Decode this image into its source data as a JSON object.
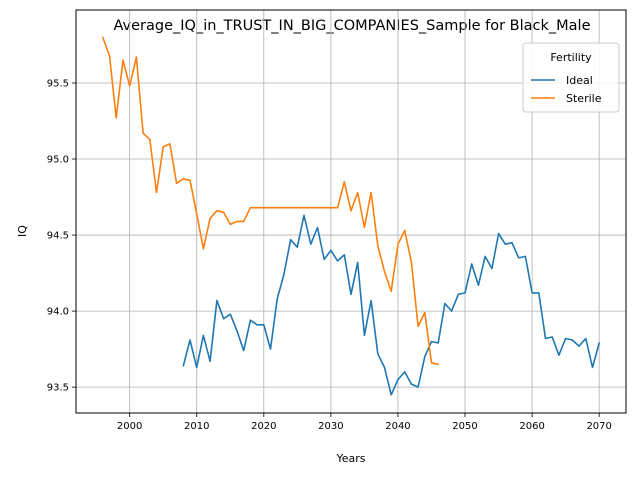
{
  "chart_data": {
    "type": "line",
    "title": "Average_IQ_in_TRUST_IN_BIG_COMPANIES_Sample for Black_Male",
    "xlabel": "Years",
    "ylabel": "IQ",
    "xlim": [
      1992,
      2074
    ],
    "ylim": [
      93.33,
      95.98
    ],
    "xticks": [
      2000,
      2010,
      2020,
      2030,
      2040,
      2050,
      2060,
      2070
    ],
    "yticks": [
      93.5,
      94.0,
      94.5,
      95.0,
      95.5
    ],
    "ytick_labels": [
      "93.5",
      "94.0",
      "94.5",
      "95.0",
      "95.5"
    ],
    "grid": true,
    "legend": {
      "title": "Fertility",
      "position": "top-right"
    },
    "series": [
      {
        "name": "Ideal",
        "color": "#1f77b4",
        "x": [
          2008,
          2009,
          2010,
          2011,
          2012,
          2013,
          2014,
          2015,
          2016,
          2017,
          2018,
          2019,
          2020,
          2021,
          2022,
          2023,
          2024,
          2025,
          2026,
          2027,
          2028,
          2029,
          2030,
          2031,
          2032,
          2033,
          2034,
          2035,
          2036,
          2037,
          2038,
          2039,
          2040,
          2041,
          2042,
          2043,
          2044,
          2045,
          2046,
          2047,
          2048,
          2049,
          2050,
          2051,
          2052,
          2053,
          2054,
          2055,
          2056,
          2057,
          2058,
          2059,
          2060,
          2061,
          2062,
          2063,
          2064,
          2065,
          2066,
          2067,
          2068,
          2069,
          2070
        ],
        "y": [
          93.64,
          93.81,
          93.63,
          93.84,
          93.67,
          94.07,
          93.95,
          93.98,
          93.87,
          93.74,
          93.94,
          93.91,
          93.91,
          93.75,
          94.08,
          94.24,
          94.47,
          94.42,
          94.63,
          94.44,
          94.55,
          94.34,
          94.4,
          94.33,
          94.37,
          94.11,
          94.32,
          93.84,
          94.07,
          93.72,
          93.63,
          93.45,
          93.55,
          93.6,
          93.52,
          93.5,
          93.7,
          93.8,
          93.79,
          94.05,
          94.0,
          94.11,
          94.12,
          94.31,
          94.17,
          94.36,
          94.28,
          94.51,
          94.44,
          94.45,
          94.35,
          94.36,
          94.12,
          94.12,
          93.82,
          93.83,
          93.71,
          93.82,
          93.81,
          93.77,
          93.82,
          93.63,
          93.79
        ]
      },
      {
        "name": "Sterile",
        "color": "#ff7f0e",
        "x": [
          1996,
          1997,
          1998,
          1999,
          2000,
          2001,
          2002,
          2003,
          2004,
          2005,
          2006,
          2007,
          2008,
          2009,
          2010,
          2011,
          2012,
          2013,
          2014,
          2015,
          2016,
          2017,
          2018,
          2019,
          2020,
          2021,
          2022,
          2023,
          2024,
          2025,
          2026,
          2027,
          2028,
          2029,
          2030,
          2031,
          2032,
          2033,
          2034,
          2035,
          2036,
          2037,
          2038,
          2039,
          2040,
          2041,
          2042,
          2043,
          2044,
          2045,
          2046
        ],
        "y": [
          95.8,
          95.68,
          95.27,
          95.65,
          95.48,
          95.67,
          95.17,
          95.13,
          94.78,
          95.08,
          95.1,
          94.84,
          94.87,
          94.86,
          94.64,
          94.41,
          94.61,
          94.66,
          94.65,
          94.57,
          94.59,
          94.59,
          94.68,
          94.68,
          94.68,
          94.68,
          94.68,
          94.68,
          94.68,
          94.68,
          94.68,
          94.68,
          94.68,
          94.68,
          94.68,
          94.68,
          94.85,
          94.66,
          94.78,
          94.55,
          94.78,
          94.43,
          94.26,
          94.13,
          94.44,
          94.53,
          94.32,
          93.9,
          93.99,
          93.66,
          93.65
        ]
      }
    ]
  }
}
